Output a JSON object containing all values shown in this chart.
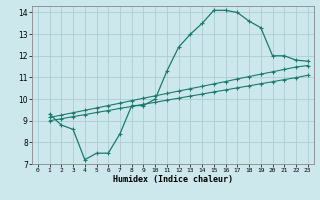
{
  "xlabel": "Humidex (Indice chaleur)",
  "xlim": [
    -0.5,
    23.5
  ],
  "ylim": [
    7,
    14.3
  ],
  "yticks": [
    7,
    8,
    9,
    10,
    11,
    12,
    13,
    14
  ],
  "xticks": [
    0,
    1,
    2,
    3,
    4,
    5,
    6,
    7,
    8,
    9,
    10,
    11,
    12,
    13,
    14,
    15,
    16,
    17,
    18,
    19,
    20,
    21,
    22,
    23
  ],
  "bg_color": "#cce8ec",
  "line_color": "#1a7a6e",
  "grid_color": "#aacdd4",
  "line1_x": [
    1,
    2,
    3,
    4,
    5,
    6,
    7,
    8,
    9,
    10,
    11,
    12,
    13,
    14,
    15,
    16,
    17,
    18,
    19,
    20,
    21,
    22,
    23
  ],
  "line1_y": [
    9.3,
    8.8,
    8.6,
    7.2,
    7.5,
    7.5,
    8.4,
    9.7,
    9.7,
    10.0,
    11.3,
    12.4,
    13.0,
    13.5,
    14.1,
    14.1,
    14.0,
    13.6,
    13.3,
    12.0,
    12.0,
    11.8,
    11.75
  ],
  "line2_x": [
    1,
    2,
    3,
    4,
    5,
    6,
    7,
    8,
    9,
    10,
    11,
    12,
    13,
    14,
    15,
    16,
    17,
    18,
    19,
    20,
    21,
    22,
    23
  ],
  "line2_y": [
    9.0,
    9.09,
    9.19,
    9.28,
    9.38,
    9.47,
    9.57,
    9.66,
    9.76,
    9.85,
    9.95,
    10.04,
    10.14,
    10.23,
    10.33,
    10.42,
    10.52,
    10.61,
    10.71,
    10.8,
    10.9,
    10.99,
    11.1
  ],
  "line3_x": [
    1,
    2,
    3,
    4,
    5,
    6,
    7,
    8,
    9,
    10,
    11,
    12,
    13,
    14,
    15,
    16,
    17,
    18,
    19,
    20,
    21,
    22,
    23
  ],
  "line3_y": [
    9.15,
    9.26,
    9.37,
    9.48,
    9.59,
    9.7,
    9.81,
    9.93,
    10.04,
    10.15,
    10.26,
    10.37,
    10.48,
    10.59,
    10.7,
    10.81,
    10.93,
    11.04,
    11.15,
    11.26,
    11.37,
    11.48,
    11.55
  ]
}
